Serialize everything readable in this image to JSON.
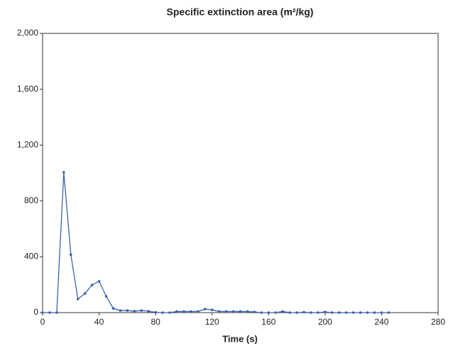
{
  "chart_data": {
    "type": "line",
    "title": "Specific extinction area (m²/kg)",
    "x_label": "Time (s)",
    "x": [
      0,
      5,
      10,
      15,
      20,
      25,
      30,
      35,
      40,
      45,
      50,
      55,
      60,
      65,
      70,
      75,
      80,
      85,
      90,
      95,
      100,
      105,
      110,
      115,
      120,
      125,
      130,
      135,
      140,
      145,
      150,
      155,
      160,
      165,
      170,
      175,
      180,
      185,
      190,
      195,
      200,
      205,
      210,
      215,
      220,
      225,
      230,
      235,
      240,
      245
    ],
    "series": [
      {
        "name": "Specific extinction area",
        "color": "#3a63a8",
        "values": [
          0,
          0,
          0,
          1005,
          415,
          97,
          137,
          198,
          224,
          117,
          30,
          15,
          15,
          10,
          15,
          10,
          2,
          0,
          0,
          8,
          8,
          8,
          8,
          25,
          20,
          8,
          8,
          8,
          8,
          8,
          5,
          0,
          0,
          0,
          8,
          0,
          0,
          3,
          0,
          0,
          5,
          0,
          0,
          0,
          0,
          0,
          0,
          0,
          0,
          0
        ]
      }
    ],
    "xlim": [
      0,
      280
    ],
    "xticks": [
      0,
      40,
      80,
      120,
      160,
      200,
      240,
      280
    ],
    "ylim": [
      0,
      2000
    ],
    "yticks": [
      0,
      400,
      800,
      {
        "value": 1200,
        "label": "1,200"
      },
      {
        "value": 1600,
        "label": "1,600"
      },
      {
        "value": 2000,
        "label": "2,000"
      }
    ]
  }
}
